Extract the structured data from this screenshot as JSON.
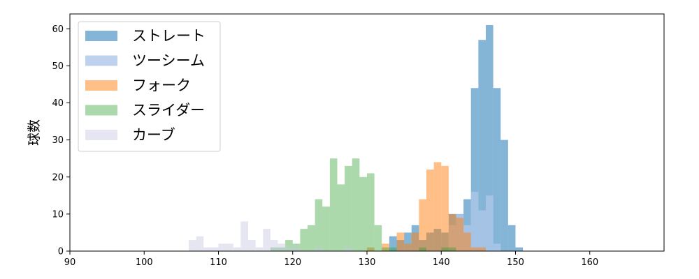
{
  "chart_data": {
    "type": "bar",
    "xlabel": "",
    "ylabel": "球数",
    "xlim": [
      90,
      170
    ],
    "ylim": [
      0,
      64
    ],
    "x_ticks": [
      90,
      100,
      110,
      120,
      130,
      140,
      150,
      160
    ],
    "y_ticks": [
      0,
      10,
      20,
      30,
      40,
      50,
      60
    ],
    "grid": false,
    "legend_position": "top-left",
    "bin_width": 1,
    "series": [
      {
        "name": "ストレート",
        "color": "#1f77b4",
        "opacity": 0.55,
        "bins": [
          {
            "x": 133,
            "value": 4
          },
          {
            "x": 134,
            "value": 3
          },
          {
            "x": 135,
            "value": 5
          },
          {
            "x": 136,
            "value": 7
          },
          {
            "x": 137,
            "value": 3
          },
          {
            "x": 138,
            "value": 5
          },
          {
            "x": 139,
            "value": 6
          },
          {
            "x": 140,
            "value": 5
          },
          {
            "x": 141,
            "value": 10
          },
          {
            "x": 142,
            "value": 10
          },
          {
            "x": 143,
            "value": 14
          },
          {
            "x": 144,
            "value": 44
          },
          {
            "x": 145,
            "value": 57
          },
          {
            "x": 146,
            "value": 61
          },
          {
            "x": 147,
            "value": 44
          },
          {
            "x": 148,
            "value": 30
          },
          {
            "x": 149,
            "value": 7
          },
          {
            "x": 150,
            "value": 1
          }
        ]
      },
      {
        "name": "ツーシーム",
        "color": "#aec7e8",
        "opacity": 0.8,
        "bins": [
          {
            "x": 141,
            "value": 7
          },
          {
            "x": 142,
            "value": 10
          },
          {
            "x": 143,
            "value": 7
          },
          {
            "x": 144,
            "value": 16
          },
          {
            "x": 145,
            "value": 11
          },
          {
            "x": 146,
            "value": 15
          },
          {
            "x": 147,
            "value": 2
          }
        ]
      },
      {
        "name": "フォーク",
        "color": "#ff7f0e",
        "opacity": 0.5,
        "bins": [
          {
            "x": 130,
            "value": 1
          },
          {
            "x": 132,
            "value": 2
          },
          {
            "x": 134,
            "value": 5
          },
          {
            "x": 135,
            "value": 2
          },
          {
            "x": 136,
            "value": 5
          },
          {
            "x": 137,
            "value": 14
          },
          {
            "x": 138,
            "value": 22
          },
          {
            "x": 139,
            "value": 24
          },
          {
            "x": 140,
            "value": 23
          },
          {
            "x": 141,
            "value": 10
          },
          {
            "x": 142,
            "value": 9
          },
          {
            "x": 143,
            "value": 5
          },
          {
            "x": 144,
            "value": 1
          },
          {
            "x": 145,
            "value": 1
          }
        ]
      },
      {
        "name": "スライダー",
        "color": "#2ca02c",
        "opacity": 0.4,
        "bins": [
          {
            "x": 117,
            "value": 1
          },
          {
            "x": 118,
            "value": 1
          },
          {
            "x": 119,
            "value": 3
          },
          {
            "x": 120,
            "value": 2
          },
          {
            "x": 121,
            "value": 6
          },
          {
            "x": 122,
            "value": 7
          },
          {
            "x": 123,
            "value": 14
          },
          {
            "x": 124,
            "value": 12
          },
          {
            "x": 125,
            "value": 25
          },
          {
            "x": 126,
            "value": 18
          },
          {
            "x": 127,
            "value": 23
          },
          {
            "x": 128,
            "value": 25
          },
          {
            "x": 129,
            "value": 20
          },
          {
            "x": 130,
            "value": 21
          },
          {
            "x": 131,
            "value": 7
          },
          {
            "x": 132,
            "value": 1
          },
          {
            "x": 133,
            "value": 1
          },
          {
            "x": 137,
            "value": 1
          },
          {
            "x": 140,
            "value": 1
          },
          {
            "x": 141,
            "value": 1
          }
        ]
      },
      {
        "name": "カーブ",
        "color": "#c5c8e3",
        "opacity": 0.45,
        "bins": [
          {
            "x": 106,
            "value": 3
          },
          {
            "x": 107,
            "value": 4
          },
          {
            "x": 108,
            "value": 1
          },
          {
            "x": 109,
            "value": 1
          },
          {
            "x": 110,
            "value": 2
          },
          {
            "x": 111,
            "value": 2
          },
          {
            "x": 112,
            "value": 1
          },
          {
            "x": 113,
            "value": 8
          },
          {
            "x": 114,
            "value": 3
          },
          {
            "x": 115,
            "value": 1
          },
          {
            "x": 116,
            "value": 6
          },
          {
            "x": 117,
            "value": 3
          },
          {
            "x": 118,
            "value": 2
          },
          {
            "x": 119,
            "value": 1
          },
          {
            "x": 120,
            "value": 1
          },
          {
            "x": 123,
            "value": 1
          },
          {
            "x": 127,
            "value": 1
          }
        ]
      }
    ]
  }
}
